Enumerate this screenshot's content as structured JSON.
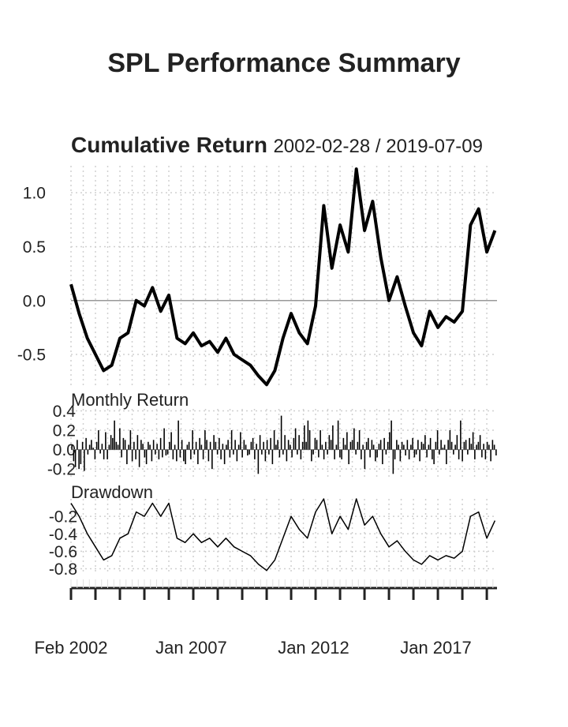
{
  "title": "SPL Performance Summary",
  "chart_data": [
    {
      "type": "line",
      "panel": "cumulative",
      "title": "Cumulative Return",
      "date_range": "2002-02-28 / 2019-07-09",
      "ylim": [
        -0.8,
        1.25
      ],
      "y_ticks": [
        {
          "value": 1.0,
          "label": "1.0"
        },
        {
          "value": 0.5,
          "label": "0.5"
        },
        {
          "value": 0.0,
          "label": "0.0"
        },
        {
          "value": -0.5,
          "label": "-0.5"
        }
      ],
      "grid": true,
      "series": [
        {
          "color": "#000000",
          "points": [
            [
              "2002-02",
              0.15
            ],
            [
              "2002-06",
              -0.12
            ],
            [
              "2002-10",
              -0.35
            ],
            [
              "2003-02",
              -0.5
            ],
            [
              "2003-06",
              -0.65
            ],
            [
              "2003-10",
              -0.6
            ],
            [
              "2004-02",
              -0.35
            ],
            [
              "2004-06",
              -0.3
            ],
            [
              "2004-10",
              0.0
            ],
            [
              "2005-02",
              -0.05
            ],
            [
              "2005-06",
              0.12
            ],
            [
              "2005-10",
              -0.1
            ],
            [
              "2006-02",
              0.05
            ],
            [
              "2006-06",
              -0.35
            ],
            [
              "2006-10",
              -0.4
            ],
            [
              "2007-02",
              -0.3
            ],
            [
              "2007-06",
              -0.42
            ],
            [
              "2007-10",
              -0.38
            ],
            [
              "2008-02",
              -0.48
            ],
            [
              "2008-06",
              -0.35
            ],
            [
              "2008-10",
              -0.5
            ],
            [
              "2009-02",
              -0.55
            ],
            [
              "2009-06",
              -0.6
            ],
            [
              "2009-10",
              -0.7
            ],
            [
              "2010-02",
              -0.78
            ],
            [
              "2010-06",
              -0.65
            ],
            [
              "2010-10",
              -0.35
            ],
            [
              "2011-02",
              -0.12
            ],
            [
              "2011-06",
              -0.3
            ],
            [
              "2011-10",
              -0.4
            ],
            [
              "2012-02",
              -0.05
            ],
            [
              "2012-06",
              0.88
            ],
            [
              "2012-10",
              0.3
            ],
            [
              "2013-02",
              0.7
            ],
            [
              "2013-06",
              0.45
            ],
            [
              "2013-10",
              1.22
            ],
            [
              "2014-02",
              0.65
            ],
            [
              "2014-06",
              0.92
            ],
            [
              "2014-10",
              0.4
            ],
            [
              "2015-02",
              0.0
            ],
            [
              "2015-06",
              0.22
            ],
            [
              "2015-10",
              -0.05
            ],
            [
              "2016-02",
              -0.3
            ],
            [
              "2016-06",
              -0.42
            ],
            [
              "2016-10",
              -0.1
            ],
            [
              "2017-02",
              -0.25
            ],
            [
              "2017-06",
              -0.15
            ],
            [
              "2017-10",
              -0.2
            ],
            [
              "2018-02",
              -0.1
            ],
            [
              "2018-06",
              0.7
            ],
            [
              "2018-10",
              0.85
            ],
            [
              "2019-02",
              0.45
            ],
            [
              "2019-06",
              0.65
            ]
          ]
        }
      ]
    },
    {
      "type": "bar",
      "panel": "monthly",
      "title": "Monthly Return",
      "ylim": [
        -0.28,
        0.42
      ],
      "y_ticks": [
        {
          "value": 0.4,
          "label": "0.4"
        },
        {
          "value": 0.2,
          "label": "0.2"
        },
        {
          "value": 0.0,
          "label": "0.0"
        },
        {
          "value": -0.2,
          "label": "-0.2"
        }
      ],
      "values": [
        0.05,
        -0.12,
        -0.18,
        0.1,
        -0.2,
        -0.15,
        0.08,
        -0.22,
        0.12,
        -0.05,
        0.05,
        0.1,
        0.02,
        -0.1,
        0.08,
        0.2,
        -0.04,
        0.06,
        -0.1,
        0.18,
        -0.1,
        0.05,
        0.15,
        0.12,
        0.3,
        0.08,
        0.05,
        0.22,
        -0.08,
        0.12,
        0.1,
        -0.15,
        0.05,
        0.2,
        -0.12,
        0.08,
        -0.1,
        0.15,
        -0.18,
        0.1,
        0.06,
        -0.08,
        -0.15,
        0.08,
        0.05,
        -0.12,
        0.1,
        -0.05,
        0.06,
        -0.1,
        0.12,
        -0.08,
        0.22,
        -0.06,
        -0.05,
        0.08,
        0.18,
        -0.1,
        0.05,
        -0.12,
        0.3,
        -0.08,
        0.1,
        -0.12,
        -0.15,
        0.05,
        0.08,
        -0.1,
        0.2,
        -0.05,
        0.08,
        -0.15,
        0.12,
        0.05,
        -0.1,
        0.2,
        0.1,
        -0.12,
        0.08,
        -0.2,
        0.15,
        0.08,
        -0.05,
        0.12,
        -0.1,
        0.06,
        -0.15,
        0.05,
        0.1,
        -0.08,
        0.2,
        -0.05,
        0.1,
        -0.12,
        0.05,
        0.18,
        -0.08,
        0.1,
        0.05,
        -0.06,
        -0.05,
        0.08,
        0.12,
        -0.1,
        0.06,
        -0.25,
        0.15,
        -0.05,
        0.08,
        -0.12,
        0.1,
        -0.05,
        0.12,
        -0.15,
        0.2,
        0.05,
        0.1,
        -0.08,
        0.35,
        -0.05,
        0.15,
        -0.12,
        0.1,
        0.05,
        -0.08,
        0.12,
        0.22,
        -0.05,
        0.15,
        -0.1,
        0.08,
        0.25,
        0.08,
        0.3,
        0.2,
        -0.12,
        -0.05,
        0.12,
        0.1,
        -0.08,
        0.2,
        0.05,
        -0.1,
        0.08,
        -0.05,
        0.15,
        0.1,
        0.25,
        -0.1,
        0.05,
        0.3,
        -0.08,
        -0.1,
        0.12,
        0.05,
        0.18,
        -0.15,
        0.08,
        0.1,
        0.22,
        -0.05,
        0.08,
        0.2,
        -0.1,
        0.05,
        -0.2,
        0.08,
        0.12,
        -0.08,
        0.1,
        0.05,
        -0.12,
        -0.08,
        0.06,
        0.1,
        -0.15,
        0.12,
        -0.05,
        0.08,
        0.18,
        0.3,
        -0.25,
        -0.1,
        0.1,
        0.05,
        -0.12,
        0.08,
        0.05,
        -0.06,
        0.1,
        -0.1,
        0.05,
        0.12,
        -0.08,
        -0.05,
        0.1,
        -0.12,
        0.08,
        0.06,
        0.15,
        -0.08,
        0.05,
        0.12,
        -0.1,
        -0.15,
        0.08,
        0.2,
        -0.05,
        0.1,
        0.02,
        0.05,
        -0.15,
        0.1,
        0.2,
        0.08,
        -0.05,
        0.05,
        0.15,
        -0.1,
        0.3,
        -0.12,
        0.08,
        0.1,
        -0.05,
        0.12,
        0.06,
        0.18,
        -0.1,
        0.05,
        0.08,
        0.15,
        -0.08,
        0.06,
        -0.1,
        0.08,
        0.05,
        -0.12,
        0.1,
        0.05,
        -0.06
      ]
    },
    {
      "type": "line",
      "panel": "drawdown",
      "title": "Drawdown",
      "ylim": [
        -0.85,
        0.0
      ],
      "y_ticks": [
        {
          "value": -0.2,
          "label": "-0.2"
        },
        {
          "value": -0.4,
          "label": "-0.4"
        },
        {
          "value": -0.6,
          "label": "-0.6"
        },
        {
          "value": -0.8,
          "label": "-0.8"
        }
      ],
      "series": [
        {
          "color": "#000000",
          "points": [
            [
              "2002-02",
              -0.05
            ],
            [
              "2002-06",
              -0.2
            ],
            [
              "2002-10",
              -0.4
            ],
            [
              "2003-02",
              -0.55
            ],
            [
              "2003-06",
              -0.7
            ],
            [
              "2003-10",
              -0.65
            ],
            [
              "2004-02",
              -0.45
            ],
            [
              "2004-06",
              -0.4
            ],
            [
              "2004-10",
              -0.15
            ],
            [
              "2005-02",
              -0.2
            ],
            [
              "2005-06",
              -0.05
            ],
            [
              "2005-10",
              -0.2
            ],
            [
              "2006-02",
              -0.05
            ],
            [
              "2006-06",
              -0.45
            ],
            [
              "2006-10",
              -0.5
            ],
            [
              "2007-02",
              -0.4
            ],
            [
              "2007-06",
              -0.5
            ],
            [
              "2007-10",
              -0.45
            ],
            [
              "2008-02",
              -0.55
            ],
            [
              "2008-06",
              -0.45
            ],
            [
              "2008-10",
              -0.55
            ],
            [
              "2009-02",
              -0.6
            ],
            [
              "2009-06",
              -0.65
            ],
            [
              "2009-10",
              -0.75
            ],
            [
              "2010-02",
              -0.82
            ],
            [
              "2010-06",
              -0.7
            ],
            [
              "2010-10",
              -0.45
            ],
            [
              "2011-02",
              -0.2
            ],
            [
              "2011-06",
              -0.35
            ],
            [
              "2011-10",
              -0.45
            ],
            [
              "2012-02",
              -0.15
            ],
            [
              "2012-06",
              0.0
            ],
            [
              "2012-10",
              -0.4
            ],
            [
              "2013-02",
              -0.2
            ],
            [
              "2013-06",
              -0.35
            ],
            [
              "2013-10",
              0.0
            ],
            [
              "2014-02",
              -0.3
            ],
            [
              "2014-06",
              -0.2
            ],
            [
              "2014-10",
              -0.4
            ],
            [
              "2015-02",
              -0.55
            ],
            [
              "2015-06",
              -0.48
            ],
            [
              "2015-10",
              -0.6
            ],
            [
              "2016-02",
              -0.7
            ],
            [
              "2016-06",
              -0.75
            ],
            [
              "2016-10",
              -0.65
            ],
            [
              "2017-02",
              -0.7
            ],
            [
              "2017-06",
              -0.65
            ],
            [
              "2017-10",
              -0.68
            ],
            [
              "2018-02",
              -0.6
            ],
            [
              "2018-06",
              -0.2
            ],
            [
              "2018-10",
              -0.15
            ],
            [
              "2019-02",
              -0.45
            ],
            [
              "2019-06",
              -0.25
            ]
          ]
        }
      ]
    }
  ],
  "x_axis": {
    "start": "2002-02",
    "end": "2019-07",
    "tick_labels": [
      {
        "date": "2002-02",
        "label": "Feb 2002"
      },
      {
        "date": "2007-01",
        "label": "Jan 2007"
      },
      {
        "date": "2012-01",
        "label": "Jan 2012"
      },
      {
        "date": "2017-01",
        "label": "Jan 2017"
      }
    ]
  }
}
